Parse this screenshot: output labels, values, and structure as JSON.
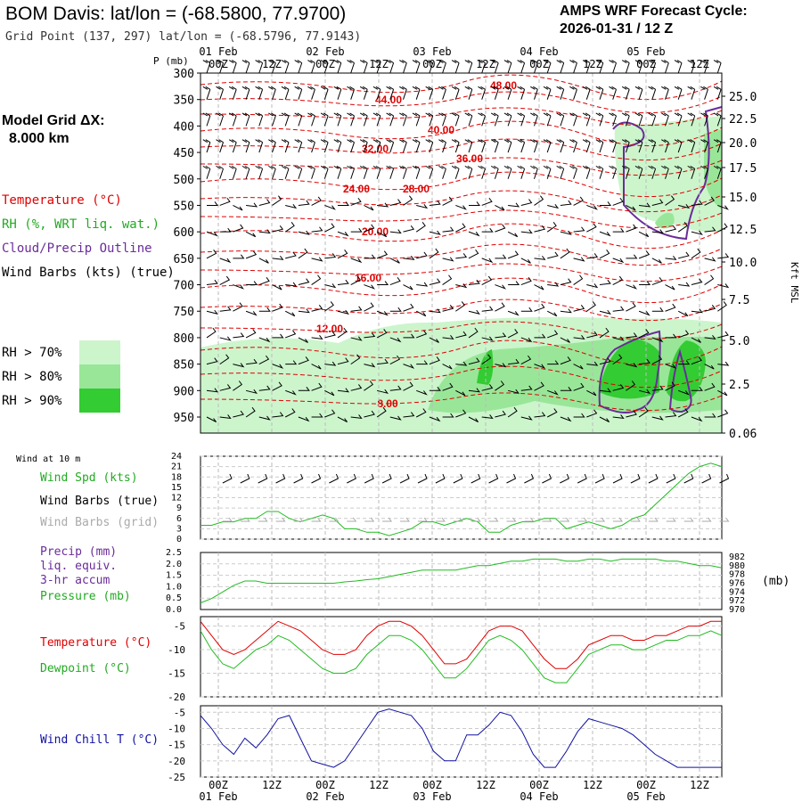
{
  "header": {
    "title": "BOM Davis:  lat/lon = (-68.5800, 77.9700)",
    "grid_point": "Grid Point (137, 297) lat/lon = (-68.5796, 77.9143)",
    "cycle_line1": "AMPS WRF Forecast Cycle:",
    "cycle_line2": "2026-01-31 / 12  Z",
    "model_grid_label": "Model Grid ΔX:",
    "model_grid_value": "8.000 km"
  },
  "legend": {
    "temperature": "Temperature (°C)",
    "rh": "RH (%, WRT liq. wat.)",
    "cloud": "Cloud/Precip Outline",
    "wind": "Wind Barbs (kts) (true)",
    "rh70": "RH > 70%",
    "rh80": "RH > 80%",
    "rh90": "RH > 90%"
  },
  "colors": {
    "temp": "#e00000",
    "rh70": "#ccf5cc",
    "rh80": "#99e699",
    "rh90": "#33cc33",
    "cloud": "#6a2c9a",
    "dewpoint": "#22bb22",
    "windchill": "#1010a0",
    "precip": "#6a2c9a",
    "grid_barbs": "#aaaaaa"
  },
  "time_axis": {
    "top_dates": [
      "01 Feb",
      "02 Feb",
      "03 Feb",
      "04 Feb",
      "05 Feb"
    ],
    "top_hours": [
      "00Z",
      "12Z",
      "00Z",
      "12Z",
      "00Z",
      "12Z",
      "00Z",
      "12Z",
      "00Z",
      "12Z"
    ],
    "bottom_hours": [
      "00Z",
      "12Z",
      "00Z",
      "12Z",
      "00Z",
      "12Z",
      "00Z",
      "12Z",
      "00Z",
      "12Z"
    ],
    "bottom_dates": [
      "01 Feb",
      "02 Feb",
      "03 Feb",
      "04 Feb",
      "05 Feb"
    ]
  },
  "chart_data": [
    {
      "type": "heatmap",
      "ylabel": "P (mb)",
      "y_right_label": "Kft MSL",
      "pressure_ticks": [
        300,
        350,
        400,
        450,
        500,
        550,
        600,
        650,
        700,
        750,
        800,
        850,
        900,
        950
      ],
      "height_ticks": [
        "25.0",
        "22.5",
        "20.0",
        "17.5",
        "15.0",
        "12.5",
        "10.0",
        "7.5",
        "5.0",
        "2.5",
        "0.06"
      ],
      "temperature_labels": [
        "48.00",
        "44.00",
        "40.00",
        "36.00",
        "32.00",
        "28.00",
        "24.00",
        "20.00",
        "16.00",
        "12.00",
        "8.00"
      ]
    },
    {
      "type": "line",
      "panel_label": "Wind at 10 m",
      "series_labels": [
        "Wind Spd (kts)",
        "Wind Barbs (true)",
        "Wind Barbs (grid)"
      ],
      "yticks": [
        0,
        3,
        6,
        9,
        12,
        15,
        18,
        21,
        24
      ],
      "ylim": [
        0,
        24
      ],
      "series": [
        {
          "name": "Wind Spd (kts)",
          "values": [
            4,
            4,
            5,
            5,
            6,
            6,
            8,
            8,
            6,
            5,
            6,
            7,
            6,
            3,
            3,
            2,
            2,
            1,
            2,
            3,
            5,
            5,
            4,
            5,
            6,
            5,
            2,
            2,
            4,
            5,
            5,
            6,
            6,
            3,
            4,
            5,
            4,
            3,
            4,
            6,
            7,
            10,
            13,
            16,
            19,
            21,
            22,
            21
          ]
        }
      ]
    },
    {
      "type": "line",
      "series_labels": [
        "Precip (mm)",
        "liq. equiv.",
        "3-hr accum",
        "Pressure (mb)"
      ],
      "yticks_left": [
        "0.0",
        "0.5",
        "1.0",
        "1.5",
        "2.0",
        "2.5"
      ],
      "yticks_right": [
        970,
        972,
        974,
        976,
        978,
        980,
        982
      ],
      "right_unit": "(mb)",
      "ylim_right": [
        970,
        983
      ],
      "series": [
        {
          "name": "Pressure (mb)",
          "values": [
            971.5,
            972.5,
            974,
            975.5,
            976.5,
            976.5,
            976,
            976,
            976,
            976,
            976,
            976,
            976,
            976.3,
            976.5,
            976.8,
            977,
            977.5,
            978,
            978.5,
            979,
            979,
            979,
            979,
            979.5,
            980,
            980,
            980.5,
            981,
            981,
            981.5,
            981.5,
            981.5,
            981,
            981,
            981.5,
            981.5,
            981,
            981.5,
            981.5,
            981.5,
            981.5,
            981,
            981,
            980.5,
            980,
            980,
            979.5
          ]
        }
      ]
    },
    {
      "type": "line",
      "series_labels": [
        "Temperature (°C)",
        "Dewpoint (°C)"
      ],
      "yticks": [
        -5,
        -10,
        -15,
        -20
      ],
      "ylim": [
        -20,
        -3
      ],
      "series": [
        {
          "name": "Temperature (°C)",
          "values": [
            -4,
            -7,
            -10,
            -11,
            -10,
            -8,
            -6,
            -4,
            -5,
            -6,
            -8,
            -10,
            -11,
            -11,
            -10,
            -7,
            -5,
            -4,
            -4,
            -5,
            -7,
            -10,
            -13,
            -13,
            -12,
            -9,
            -6,
            -5,
            -5,
            -6,
            -9,
            -12,
            -14,
            -14,
            -12,
            -9,
            -8,
            -7,
            -7,
            -8,
            -8,
            -7,
            -7,
            -6,
            -5,
            -5,
            -4,
            -4
          ]
        },
        {
          "name": "Dewpoint (°C)",
          "values": [
            -6,
            -10,
            -13,
            -14,
            -12,
            -10,
            -9,
            -7,
            -8,
            -10,
            -12,
            -14,
            -15,
            -15,
            -14,
            -11,
            -9,
            -7,
            -7,
            -8,
            -10,
            -13,
            -16,
            -16,
            -14,
            -11,
            -8,
            -7,
            -8,
            -10,
            -13,
            -16,
            -17,
            -17,
            -14,
            -11,
            -10,
            -9,
            -9,
            -10,
            -10,
            -9,
            -8,
            -8,
            -7,
            -7,
            -6,
            -7
          ]
        }
      ]
    },
    {
      "type": "line",
      "series_labels": [
        "Wind Chill T (°C)"
      ],
      "yticks": [
        -5,
        -10,
        -15,
        -20,
        -25
      ],
      "ylim": [
        -25,
        -3
      ],
      "series": [
        {
          "name": "Wind Chill T (°C)",
          "values": [
            -6,
            -10,
            -15,
            -18,
            -13,
            -16,
            -12,
            -7,
            -6,
            -13,
            -20,
            -21,
            -22,
            -20,
            -15,
            -10,
            -5,
            -4,
            -5,
            -6,
            -10,
            -17,
            -20,
            -20,
            -12,
            -12,
            -9,
            -5,
            -6,
            -11,
            -18,
            -22,
            -22,
            -17,
            -11,
            -7,
            -8,
            -9,
            -10,
            -12,
            -15,
            -18,
            -20,
            -22,
            -22,
            -22,
            -22,
            -22
          ]
        }
      ]
    }
  ]
}
